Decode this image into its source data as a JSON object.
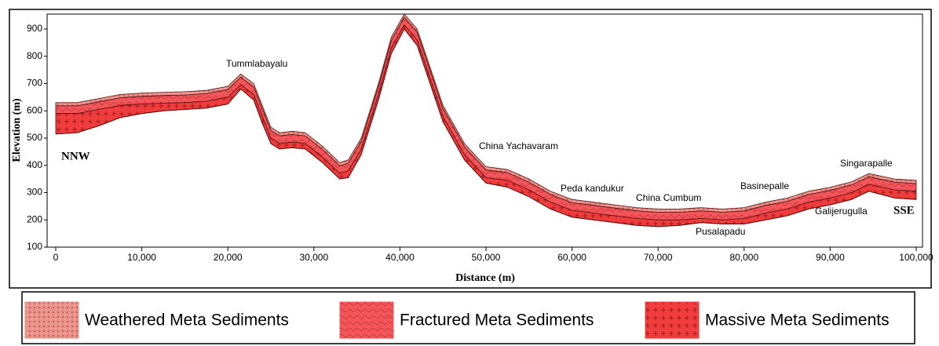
{
  "chart_data": {
    "type": "layered-section",
    "xlabel": "Distance (m)",
    "ylabel": "Elevation (m)",
    "xlim": [
      0,
      100000
    ],
    "ylim": [
      100,
      950
    ],
    "xticks": [
      0,
      {
        "value": 10000,
        "label": "10,000"
      },
      {
        "value": 20000,
        "label": "20,000"
      },
      {
        "value": 30000,
        "label": "30,000"
      },
      {
        "value": 40000,
        "label": "40,000"
      },
      {
        "value": 50000,
        "label": "50,000"
      },
      {
        "value": 60000,
        "label": "60,000"
      },
      {
        "value": 70000,
        "label": "70,000"
      },
      {
        "value": 80000,
        "label": "80,000"
      },
      {
        "value": 90000,
        "label": "90,000"
      },
      {
        "value": 100000,
        "label": "100,000"
      }
    ],
    "yticks": [
      100,
      200,
      300,
      400,
      500,
      600,
      700,
      800,
      900
    ],
    "x": [
      0,
      2500,
      5000,
      7500,
      10000,
      12500,
      15000,
      17500,
      20000,
      21500,
      23000,
      24000,
      25000,
      26000,
      27500,
      29000,
      31000,
      33000,
      34000,
      35500,
      37500,
      39000,
      40500,
      42000,
      43500,
      45000,
      47500,
      50000,
      52500,
      55000,
      57500,
      60000,
      62500,
      65000,
      67500,
      70000,
      72500,
      75000,
      77500,
      80000,
      82500,
      85000,
      87500,
      90000,
      92500,
      94500,
      97500,
      100000
    ],
    "series": [
      {
        "name": "Weathered Meta Sediments",
        "color": "#e99088",
        "pattern": "dots",
        "values": [
          630,
          630,
          645,
          660,
          665,
          668,
          670,
          675,
          690,
          735,
          700,
          620,
          540,
          520,
          525,
          520,
          470,
          410,
          420,
          500,
          700,
          870,
          955,
          900,
          760,
          620,
          480,
          395,
          385,
          350,
          305,
          275,
          265,
          255,
          245,
          240,
          240,
          245,
          240,
          245,
          265,
          280,
          305,
          320,
          340,
          370,
          350,
          345
        ]
      },
      {
        "name": "Fractured Meta Sediments",
        "color": "#f2555a",
        "pattern": "herringbone",
        "values": [
          618,
          618,
          633,
          648,
          653,
          656,
          658,
          663,
          678,
          723,
          688,
          608,
          528,
          508,
          513,
          508,
          458,
          398,
          408,
          488,
          688,
          858,
          943,
          888,
          748,
          608,
          468,
          383,
          373,
          338,
          293,
          263,
          253,
          243,
          233,
          228,
          228,
          233,
          228,
          233,
          253,
          268,
          293,
          308,
          328,
          358,
          338,
          333
        ]
      },
      {
        "name": "Massive Meta Sediments",
        "color": "#f03c3c",
        "pattern": "crosses",
        "values": [
          590,
          590,
          605,
          620,
          625,
          628,
          630,
          635,
          650,
          695,
          660,
          580,
          500,
          480,
          485,
          480,
          430,
          370,
          380,
          460,
          660,
          830,
          915,
          860,
          720,
          580,
          440,
          355,
          345,
          310,
          265,
          235,
          225,
          215,
          205,
          200,
          200,
          205,
          200,
          205,
          225,
          240,
          265,
          280,
          300,
          330,
          310,
          305
        ]
      }
    ],
    "base": [
      515,
      520,
      545,
      575,
      590,
      600,
      605,
      610,
      625,
      680,
      640,
      555,
      480,
      460,
      465,
      460,
      410,
      350,
      355,
      440,
      640,
      810,
      900,
      840,
      700,
      560,
      420,
      335,
      320,
      285,
      240,
      210,
      200,
      190,
      180,
      175,
      180,
      190,
      185,
      185,
      200,
      215,
      240,
      255,
      275,
      305,
      280,
      275
    ],
    "annotations": [
      "Tummlabayalu",
      "China Yachavaram",
      "Peda kandukur",
      "China Cumbum",
      "Basinepalle",
      "Singarapalle",
      "Galijerugulla",
      "Pusalapadu",
      "NNW",
      "SSE"
    ]
  }
}
